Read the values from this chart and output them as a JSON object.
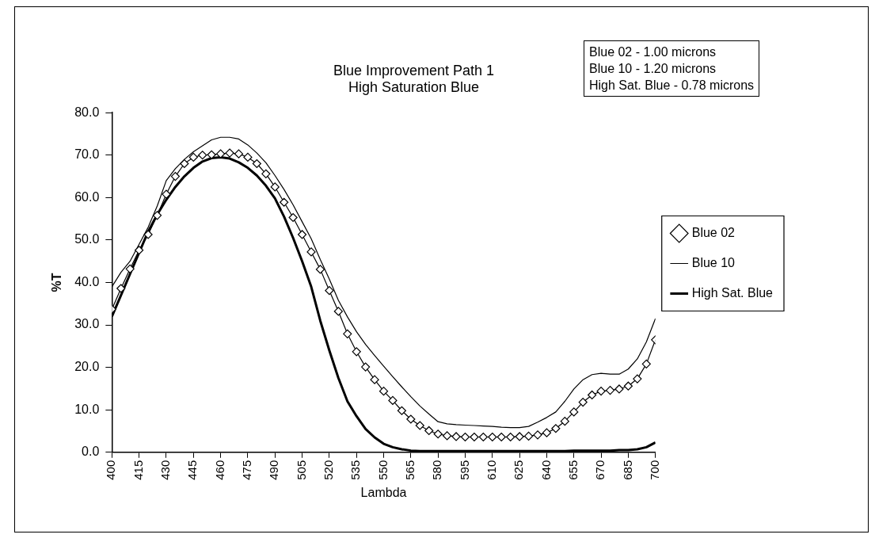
{
  "chart_data": {
    "type": "line",
    "title": [
      "Blue Improvement Path 1",
      "High Saturation Blue"
    ],
    "xlabel": "Lambda",
    "ylabel": "%T",
    "annotations": [
      "Blue 02 - 1.00 microns",
      "Blue 10 - 1.20 microns",
      "High Sat. Blue - 0.78 microns"
    ],
    "x": [
      400,
      405,
      410,
      415,
      420,
      425,
      430,
      435,
      440,
      445,
      450,
      455,
      460,
      465,
      470,
      475,
      480,
      485,
      490,
      495,
      500,
      505,
      510,
      515,
      520,
      525,
      530,
      535,
      540,
      545,
      550,
      555,
      560,
      565,
      570,
      575,
      580,
      585,
      590,
      595,
      600,
      605,
      610,
      615,
      620,
      625,
      630,
      635,
      640,
      645,
      650,
      655,
      660,
      665,
      670,
      675,
      680,
      685,
      690,
      695,
      700
    ],
    "series": [
      {
        "name": "Blue 02",
        "color": "#000000",
        "marker": "diamond",
        "values": [
          33.7,
          38.6,
          43.2,
          47.6,
          51.3,
          55.8,
          60.8,
          65.0,
          68.0,
          69.5,
          70.0,
          70.1,
          70.3,
          70.5,
          70.3,
          69.5,
          68.0,
          65.6,
          62.5,
          58.9,
          55.3,
          51.3,
          47.2,
          43.1,
          38.1,
          33.2,
          27.9,
          23.7,
          20.1,
          17.1,
          14.4,
          12.2,
          9.8,
          7.8,
          6.3,
          5.1,
          4.3,
          3.9,
          3.7,
          3.6,
          3.6,
          3.6,
          3.6,
          3.6,
          3.6,
          3.7,
          3.8,
          4.1,
          4.6,
          5.6,
          7.3,
          9.5,
          11.8,
          13.5,
          14.4,
          14.6,
          14.9,
          15.6,
          17.3,
          20.8,
          26.5
        ]
      },
      {
        "name": "Blue 10",
        "color": "#000000",
        "marker": "none",
        "values": [
          39,
          42.4,
          45,
          49,
          53,
          58,
          64,
          66.8,
          69,
          70.8,
          72.2,
          73.6,
          74.2,
          74.2,
          73.8,
          72.4,
          70.5,
          68.2,
          65.2,
          61.9,
          58.3,
          54.3,
          50.3,
          45.4,
          40.8,
          35.8,
          31.9,
          28.4,
          25.4,
          22.8,
          20.3,
          17.8,
          15.4,
          13.1,
          10.9,
          9,
          7.2,
          6.7,
          6.5,
          6.4,
          6.3,
          6.2,
          6.1,
          5.9,
          5.8,
          5.8,
          6.1,
          7.1,
          8.2,
          9.5,
          12,
          14.9,
          17.1,
          18.3,
          18.6,
          18.4,
          18.4,
          19.6,
          22,
          26,
          31.5
        ]
      },
      {
        "name": "High Sat. Blue",
        "color": "#000000",
        "marker": "none",
        "values": [
          32,
          37,
          42,
          47,
          52,
          56,
          59.5,
          62.5,
          65,
          67,
          68.5,
          69.3,
          69.5,
          69.2,
          68.3,
          67,
          65.2,
          62.8,
          59.8,
          55.5,
          50.5,
          45,
          39,
          31,
          24,
          17.5,
          12,
          8.5,
          5.5,
          3.5,
          2,
          1.2,
          0.7,
          0.4,
          0.3,
          0.3,
          0.3,
          0.3,
          0.3,
          0.3,
          0.3,
          0.3,
          0.3,
          0.3,
          0.3,
          0.3,
          0.3,
          0.3,
          0.3,
          0.3,
          0.3,
          0.4,
          0.4,
          0.4,
          0.4,
          0.4,
          0.5,
          0.5,
          0.7,
          1.2,
          2.3
        ]
      }
    ],
    "xlim": [
      400,
      700
    ],
    "xticks": [
      400,
      415,
      430,
      445,
      460,
      475,
      490,
      505,
      520,
      535,
      550,
      565,
      580,
      595,
      610,
      625,
      640,
      655,
      670,
      685,
      700
    ],
    "ylim": [
      0,
      80
    ],
    "yticks": [
      {
        "value": 0,
        "label": "0.0"
      },
      {
        "value": 10,
        "label": "10.0"
      },
      {
        "value": 20,
        "label": "20.0"
      },
      {
        "value": 30,
        "label": "30.0"
      },
      {
        "value": 40,
        "label": "40.0"
      },
      {
        "value": 50,
        "label": "50.0"
      },
      {
        "value": 60,
        "label": "60.0"
      },
      {
        "value": 70,
        "label": "70.0"
      },
      {
        "value": 80,
        "label": "80.0"
      }
    ],
    "grid": false,
    "legend": "right",
    "line_style": "solid"
  }
}
